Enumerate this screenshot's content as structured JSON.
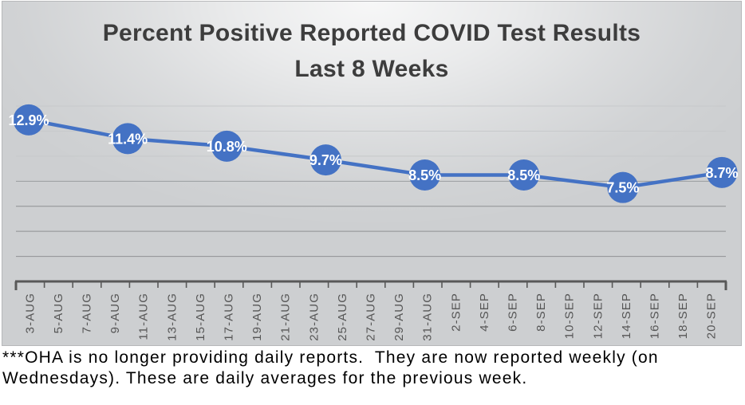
{
  "title": {
    "line1": "Percent Positive Reported COVID Test Results",
    "line2": "Last 8 Weeks"
  },
  "footnote": "***OHA is no longer providing daily reports.  They are now reported weekly (on Wednesdays). These are daily averages for the previous week.",
  "colors": {
    "accent_blue": "#4472c4",
    "data_label_text": "#ffffff",
    "axis": "#595959",
    "tick_label": "#565656",
    "gridline_light": "#c7c9cb",
    "gridline_medium": "#9a9da0",
    "gridline_dark": "#8f9193",
    "title_text": "#3d3d3d"
  },
  "chart_data": {
    "type": "line",
    "title": "Percent Positive Reported COVID Test Results Last 8 Weeks",
    "x_tick_labels": [
      "3-AUG",
      "5-AUG",
      "7-AUG",
      "9-AUG",
      "11-AUG",
      "13-AUG",
      "15-AUG",
      "17-AUG",
      "19-AUG",
      "21-AUG",
      "23-AUG",
      "25-AUG",
      "27-AUG",
      "29-AUG",
      "31-AUG",
      "2-SEP",
      "4-SEP",
      "6-SEP",
      "8-SEP",
      "10-SEP",
      "12-SEP",
      "14-SEP",
      "16-SEP",
      "18-SEP",
      "20-SEP"
    ],
    "series": [
      {
        "name": "Percent positive",
        "values": [
          12.9,
          11.4,
          10.8,
          9.7,
          8.5,
          8.5,
          7.5,
          8.7
        ],
        "x_index": [
          0,
          3.5,
          7,
          10.5,
          14,
          17.5,
          21,
          24.5
        ]
      }
    ],
    "data_labels": [
      "12.9%",
      "11.4%",
      "10.8%",
      "9.7%",
      "8.5%",
      "8.5%",
      "7.5%",
      "8.7%"
    ],
    "ylim": [
      0,
      14
    ],
    "gridline_step": 2,
    "legend": "none",
    "grid": true
  }
}
